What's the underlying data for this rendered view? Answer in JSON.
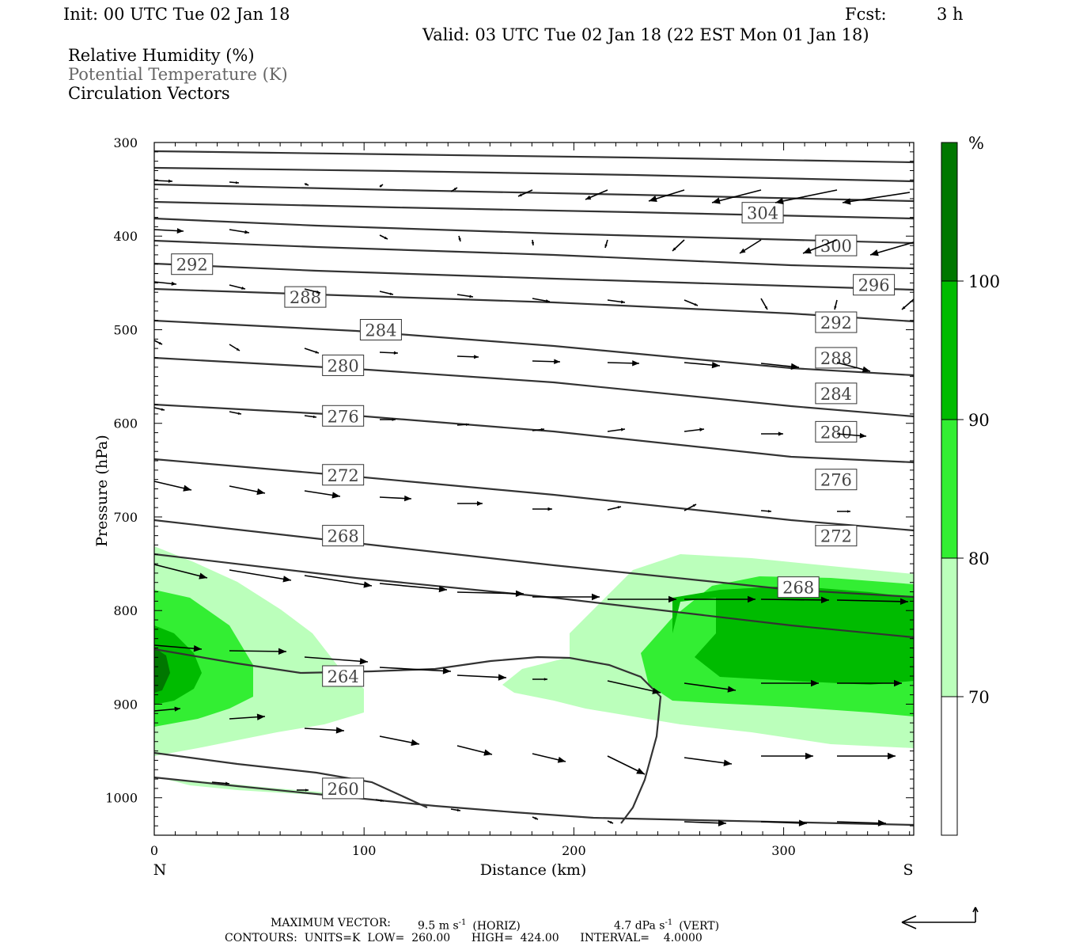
{
  "header": {
    "init": "Init: 00 UTC Tue 02 Jan 18",
    "fcst_label": "Fcst:",
    "fcst_value": "3 h",
    "valid": "Valid: 03 UTC Tue 02 Jan 18 (22 EST Mon 01 Jan 18)"
  },
  "legend_text": {
    "rh": "Relative Humidity (%)",
    "theta": "Potential Temperature (K)",
    "vectors": "Circulation Vectors"
  },
  "footer": {
    "max_vector_label": "MAXIMUM VECTOR:",
    "horiz_value": "9.5 m s",
    "horiz_unit": "(HORIZ)",
    "vert_value": "4.7 dPa s",
    "vert_unit": "(VERT)",
    "exponent": "-1",
    "contours": "CONTOURS:  UNITS=K  LOW=  260.00      HIGH=  424.00      INTERVAL=    4.0000"
  },
  "colors": {
    "rh_70_80": "#bbffbb",
    "rh_80_90": "#33ee33",
    "rh_90_100": "#00bb00",
    "rh_100": "#007700",
    "contour": "#333333",
    "vector": "#000000"
  },
  "chart_data": {
    "type": "contour",
    "xlabel": "Distance (km)",
    "ylabel": "Pressure (hPa)",
    "xlim": [
      0,
      362
    ],
    "ylim": [
      1040,
      300
    ],
    "x_ticks": [
      0,
      100,
      200,
      300
    ],
    "y_ticks": [
      300,
      400,
      500,
      600,
      700,
      800,
      900,
      1000
    ],
    "x_end_labels": {
      "left": "N",
      "right": "S"
    },
    "colorbar": {
      "unit": "%",
      "levels": [
        70,
        80,
        90,
        100
      ],
      "colors": [
        "#ffffff",
        "#bbffbb",
        "#33ee33",
        "#00bb00",
        "#007700"
      ]
    },
    "theta_labels": [
      {
        "value": "304",
        "x": 290,
        "p": 375
      },
      {
        "value": "300",
        "x": 325,
        "p": 410
      },
      {
        "value": "296",
        "x": 343,
        "p": 452
      },
      {
        "value": "292",
        "x": 18,
        "p": 430
      },
      {
        "value": "292",
        "x": 325,
        "p": 492
      },
      {
        "value": "288",
        "x": 72,
        "p": 465
      },
      {
        "value": "288",
        "x": 325,
        "p": 530
      },
      {
        "value": "284",
        "x": 108,
        "p": 500
      },
      {
        "value": "284",
        "x": 325,
        "p": 568
      },
      {
        "value": "280",
        "x": 90,
        "p": 538
      },
      {
        "value": "280",
        "x": 325,
        "p": 609
      },
      {
        "value": "276",
        "x": 90,
        "p": 592
      },
      {
        "value": "276",
        "x": 325,
        "p": 660
      },
      {
        "value": "272",
        "x": 90,
        "p": 655
      },
      {
        "value": "272",
        "x": 325,
        "p": 720
      },
      {
        "value": "268",
        "x": 90,
        "p": 720
      },
      {
        "value": "268",
        "x": 307,
        "p": 775
      },
      {
        "value": "264",
        "x": 90,
        "p": 870
      },
      {
        "value": "260",
        "x": 90,
        "p": 990
      }
    ]
  }
}
